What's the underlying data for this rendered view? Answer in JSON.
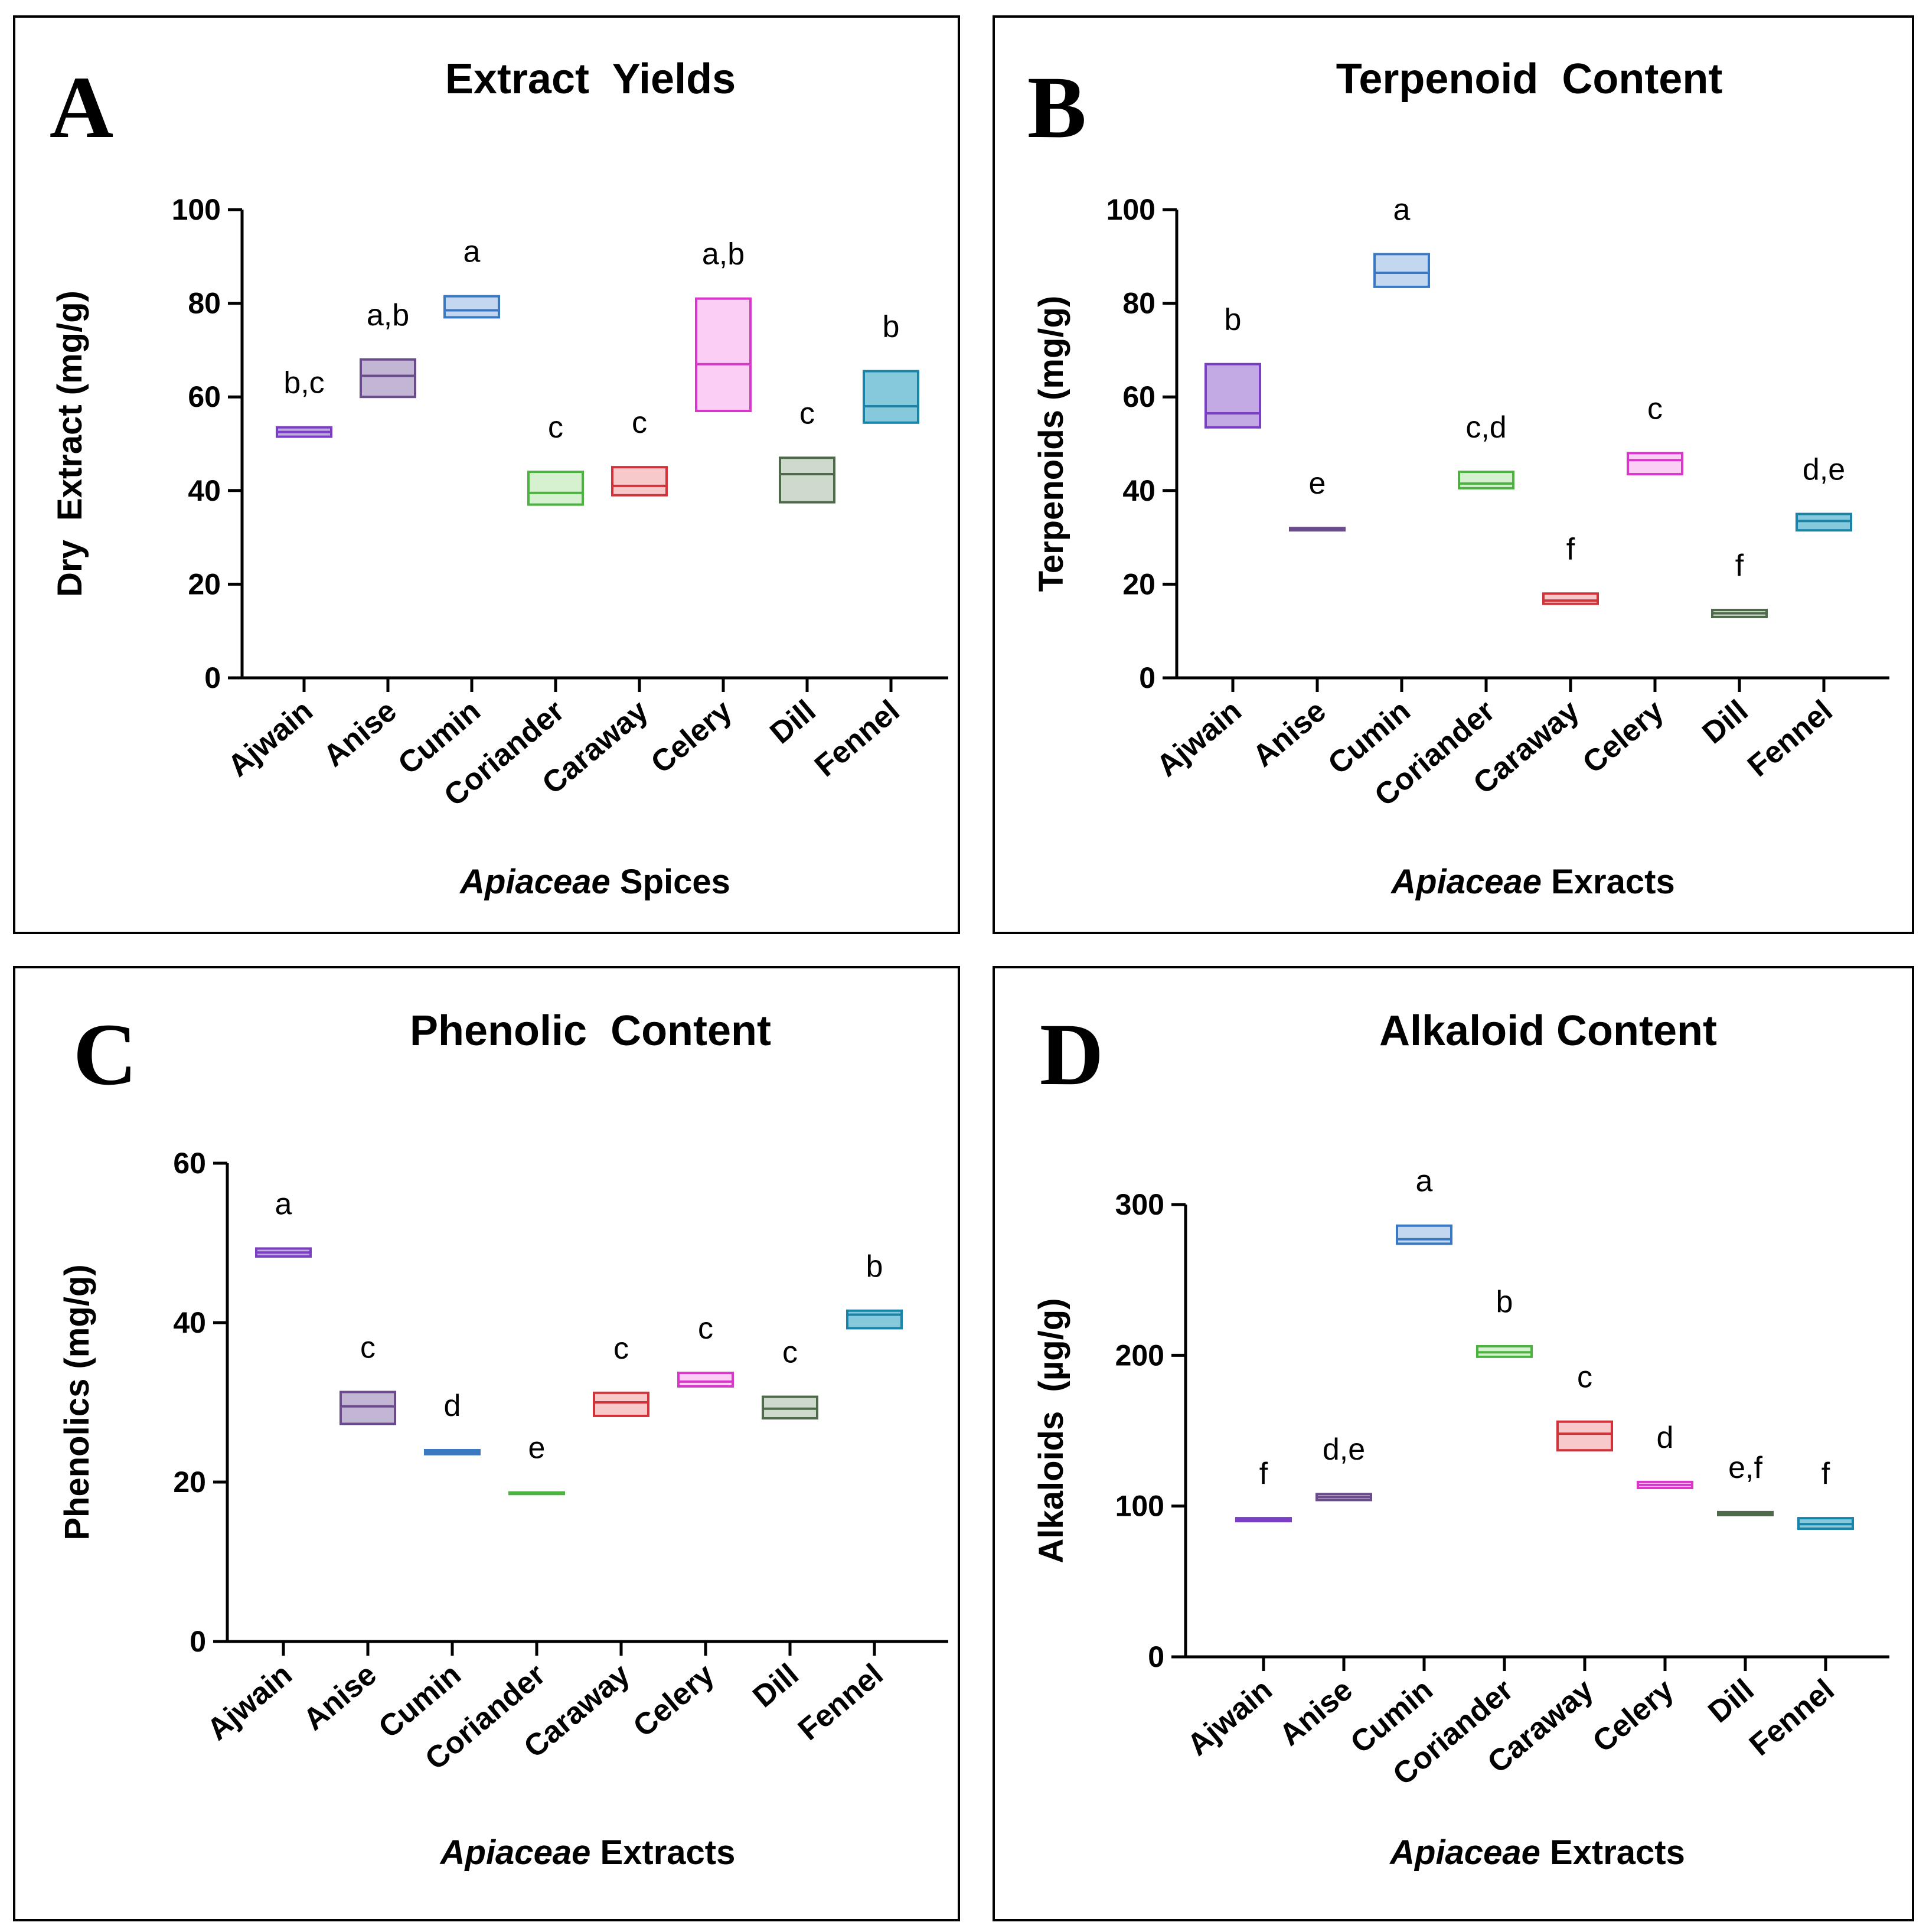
{
  "colors": {
    "Ajwain": "#7B3FC4",
    "Anise": "#6A4C8C",
    "Cumin": "#3A78C2",
    "Coriander": "#4DB340",
    "Caraway": "#D0343A",
    "Celery": "#D838C8",
    "Dill": "#4E6A4A",
    "Fennel": "#1A84A8"
  },
  "fills": {
    "Ajwain": "#B89BE0",
    "Anise": "#B8A8CC",
    "Cumin": "#B8D0EE",
    "Coriander": "#CFEFC8",
    "Caraway": "#F7C0C2",
    "Celery": "#F9C6F3",
    "Dill": "#C6D4C2",
    "Fennel": "#72C0D6"
  },
  "chart_data": [
    {
      "type": "floating-bar",
      "letter": "A",
      "title": "Extract  Yields",
      "ylabel": "Dry  Extract (mg/g)",
      "xlabel_italic": "Apiaceae",
      "xlabel_rest": " Spices",
      "ylim": [
        0,
        100
      ],
      "yticks": [
        0,
        20,
        40,
        60,
        80,
        100
      ],
      "categories": [
        "Ajwain",
        "Anise",
        "Cumin",
        "Coriander",
        "Caraway",
        "Celery",
        "Dill",
        "Fennel"
      ],
      "series": [
        {
          "name": "Ajwain",
          "min": 51.5,
          "max": 53.5,
          "median": 52.5,
          "label": "b,c"
        },
        {
          "name": "Anise",
          "min": 60,
          "max": 68,
          "median": 64.5,
          "label": "a,b"
        },
        {
          "name": "Cumin",
          "min": 77,
          "max": 81.5,
          "median": 78.5,
          "label": "a"
        },
        {
          "name": "Coriander",
          "min": 37,
          "max": 44,
          "median": 39.5,
          "label": "c"
        },
        {
          "name": "Caraway",
          "min": 39,
          "max": 45,
          "median": 41,
          "label": "c"
        },
        {
          "name": "Celery",
          "min": 57,
          "max": 81,
          "median": 67,
          "label": "a,b"
        },
        {
          "name": "Dill",
          "min": 37.5,
          "max": 47,
          "median": 43.5,
          "label": "c"
        },
        {
          "name": "Fennel",
          "min": 54.5,
          "max": 65.5,
          "median": 58,
          "label": "b"
        }
      ]
    },
    {
      "type": "floating-bar",
      "letter": "B",
      "title": "Terpenoid  Content",
      "ylabel": "Terpenoids (mg/g)",
      "xlabel_italic": "Apiaceae",
      "xlabel_rest": " Exracts",
      "ylim": [
        0,
        100
      ],
      "yticks": [
        0,
        20,
        40,
        60,
        80,
        100
      ],
      "categories": [
        "Ajwain",
        "Anise",
        "Cumin",
        "Coriander",
        "Caraway",
        "Celery",
        "Dill",
        "Fennel"
      ],
      "series": [
        {
          "name": "Ajwain",
          "min": 53.5,
          "max": 67,
          "median": 56.5,
          "label": "b"
        },
        {
          "name": "Anise",
          "min": 31.5,
          "max": 32,
          "median": 31.7,
          "label": "e"
        },
        {
          "name": "Cumin",
          "min": 83.5,
          "max": 90.5,
          "median": 86.5,
          "label": "a"
        },
        {
          "name": "Coriander",
          "min": 40.5,
          "max": 44,
          "median": 41.5,
          "label": "c,d"
        },
        {
          "name": "Caraway",
          "min": 15.8,
          "max": 18,
          "median": 16.5,
          "label": "f"
        },
        {
          "name": "Celery",
          "min": 43.5,
          "max": 48,
          "median": 46.5,
          "label": "c"
        },
        {
          "name": "Dill",
          "min": 13,
          "max": 14.5,
          "median": 13.8,
          "label": "f"
        },
        {
          "name": "Fennel",
          "min": 31.5,
          "max": 35,
          "median": 33.5,
          "label": "d,e"
        }
      ]
    },
    {
      "type": "floating-bar",
      "letter": "C",
      "title": "Phenolic  Content",
      "ylabel": "Phenolics (mg/g)",
      "xlabel_italic": "Apiaceae",
      "xlabel_rest": " Extracts",
      "ylim": [
        0,
        60
      ],
      "yticks": [
        0,
        20,
        40,
        60
      ],
      "categories": [
        "Ajwain",
        "Anise",
        "Cumin",
        "Coriander",
        "Caraway",
        "Celery",
        "Dill",
        "Fennel"
      ],
      "series": [
        {
          "name": "Ajwain",
          "min": 48.3,
          "max": 49.3,
          "median": 48.8,
          "label": "a"
        },
        {
          "name": "Anise",
          "min": 27.3,
          "max": 31.3,
          "median": 29.5,
          "label": "c"
        },
        {
          "name": "Cumin",
          "min": 23.5,
          "max": 24,
          "median": 23.7,
          "label": "d"
        },
        {
          "name": "Coriander",
          "min": 18.5,
          "max": 18.7,
          "median": 18.6,
          "label": "e"
        },
        {
          "name": "Caraway",
          "min": 28.3,
          "max": 31.2,
          "median": 30,
          "label": "c"
        },
        {
          "name": "Celery",
          "min": 32,
          "max": 33.7,
          "median": 32.6,
          "label": "c"
        },
        {
          "name": "Dill",
          "min": 28,
          "max": 30.7,
          "median": 29.2,
          "label": "c"
        },
        {
          "name": "Fennel",
          "min": 39.3,
          "max": 41.5,
          "median": 41,
          "label": "b"
        }
      ]
    },
    {
      "type": "floating-bar",
      "letter": "D",
      "title": "Alkaloid Content",
      "ylabel": "Alkaloids  (µg/g)",
      "xlabel_italic": "Apiaceae",
      "xlabel_rest": " Extracts",
      "ylim": [
        0,
        300
      ],
      "yticks": [
        0,
        100,
        200,
        300
      ],
      "categories": [
        "Ajwain",
        "Anise",
        "Cumin",
        "Coriander",
        "Caraway",
        "Celery",
        "Dill",
        "Fennel"
      ],
      "series": [
        {
          "name": "Ajwain",
          "min": 90,
          "max": 92,
          "median": 91,
          "label": "f"
        },
        {
          "name": "Anise",
          "min": 104,
          "max": 108,
          "median": 106,
          "label": "d,e"
        },
        {
          "name": "Cumin",
          "min": 274,
          "max": 286,
          "median": 277,
          "label": "a"
        },
        {
          "name": "Coriander",
          "min": 199,
          "max": 206,
          "median": 202,
          "label": "b"
        },
        {
          "name": "Caraway",
          "min": 137,
          "max": 156,
          "median": 148,
          "label": "c"
        },
        {
          "name": "Celery",
          "min": 112,
          "max": 116,
          "median": 114,
          "label": "d"
        },
        {
          "name": "Dill",
          "min": 94,
          "max": 96,
          "median": 95,
          "label": "e,f"
        },
        {
          "name": "Fennel",
          "min": 85,
          "max": 92,
          "median": 88,
          "label": "f"
        }
      ]
    }
  ]
}
